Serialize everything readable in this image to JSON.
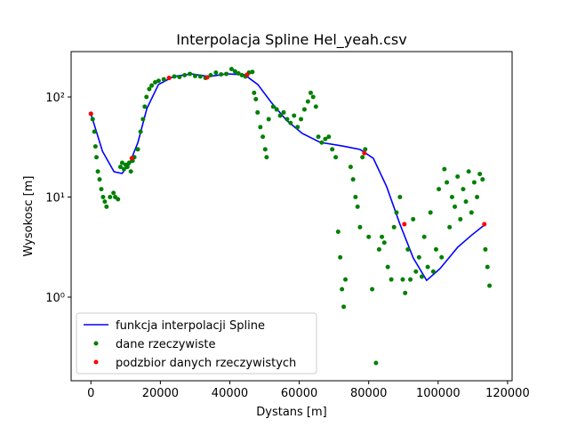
{
  "chart_data": {
    "type": "scatter",
    "title": "Interpolacja Spline Hel_yeah.csv",
    "x_label": "Dystans [m]",
    "y_label": "Wysokosc [m]",
    "yscale": "log",
    "legend": "lower left",
    "xlim": [
      -5700,
      121300
    ],
    "ylim": [
      0.146,
      284
    ],
    "xticks": [
      0,
      20000,
      40000,
      60000,
      80000,
      100000,
      120000
    ],
    "yticks": [
      {
        "value": 1,
        "label": "10⁰"
      },
      {
        "value": 10,
        "label": "10¹"
      },
      {
        "value": 100,
        "label": "10²"
      }
    ],
    "series": [
      {
        "name": "funkcja interpolacji Spline",
        "type": "line",
        "color": "#0000ff",
        "x": [
          0,
          3325,
          6650,
          8950,
          11000,
          13550,
          16110,
          19440,
          23790,
          28900,
          34000,
          39130,
          44250,
          48080,
          51920,
          56270,
          60870,
          66000,
          72380,
          77500,
          81330,
          85170,
          89000,
          92840,
          96680,
          100510,
          105630,
          109460,
          113300
        ],
        "values": [
          67.8,
          28.7,
          17.9,
          17.2,
          21.1,
          35.2,
          76.6,
          133,
          160,
          170,
          160,
          170,
          167,
          133,
          88.5,
          58.7,
          43.2,
          35.2,
          32.4,
          29.9,
          24.4,
          12.7,
          5.35,
          2.46,
          1.47,
          1.92,
          3.15,
          4.11,
          5.25
        ]
      },
      {
        "name": "dane rzeczywiste",
        "type": "scatter",
        "color": "#008000",
        "x": [
          0,
          500,
          1000,
          1300,
          1600,
          2000,
          2500,
          3000,
          3500,
          4000,
          4500,
          5500,
          6500,
          7000,
          7800,
          8500,
          9000,
          9500,
          10000,
          10500,
          11000,
          11500,
          12000,
          12500,
          13500,
          14300,
          15000,
          15500,
          16000,
          16800,
          17500,
          18500,
          19500,
          21000,
          22500,
          24000,
          25500,
          27000,
          28500,
          30000,
          31500,
          33000,
          34500,
          36000,
          37500,
          39000,
          40500,
          41500,
          42500,
          43500,
          44500,
          45500,
          46500,
          47000,
          47500,
          48000,
          48800,
          49500,
          50200,
          50600,
          51200,
          52500,
          53500,
          54500,
          55500,
          56500,
          57500,
          58500,
          59500,
          60500,
          61500,
          62500,
          63300,
          64000,
          64800,
          65500,
          66500,
          67500,
          68500,
          69500,
          70500,
          71200,
          71800,
          72300,
          72800,
          73300,
          74800,
          75500,
          76200,
          76800,
          77500,
          78200,
          79000,
          80000,
          81000,
          82100,
          83000,
          83800,
          84500,
          85500,
          86500,
          87300,
          88000,
          89000,
          89800,
          90500,
          91300,
          92000,
          92800,
          93600,
          94500,
          95300,
          96000,
          97000,
          97800,
          98600,
          99400,
          100200,
          101000,
          101800,
          102500,
          103300,
          104000,
          104800,
          105600,
          106400,
          107200,
          108000,
          108800,
          109600,
          110400,
          111200,
          112000,
          112800,
          113600,
          114200,
          114800
        ],
        "values": [
          68,
          60,
          45,
          32,
          25,
          18,
          15,
          12,
          10,
          9,
          8,
          10,
          11,
          10,
          9.5,
          20,
          22,
          19,
          21,
          20,
          22,
          18,
          23,
          25,
          30,
          45,
          60,
          80,
          100,
          120,
          130,
          140,
          145,
          150,
          155,
          160,
          158,
          165,
          170,
          162,
          160,
          155,
          165,
          175,
          168,
          170,
          190,
          180,
          172,
          165,
          160,
          175,
          178,
          110,
          95,
          70,
          50,
          40,
          30,
          25,
          60,
          80,
          75,
          65,
          70,
          60,
          55,
          65,
          50,
          60,
          75,
          90,
          110,
          100,
          80,
          40,
          35,
          38,
          40,
          30,
          25,
          4.5,
          2.5,
          1.2,
          0.8,
          1.5,
          20,
          15,
          10,
          8,
          5,
          25,
          30,
          4,
          1.2,
          0.22,
          3,
          4,
          3.5,
          2,
          1.5,
          5,
          7,
          10,
          1.5,
          1.1,
          3,
          1.5,
          6,
          1.8,
          2.5,
          1.6,
          4,
          2,
          7,
          1.8,
          3,
          12,
          2.5,
          19,
          14,
          5,
          10,
          8,
          16,
          6,
          12,
          9,
          18,
          7,
          14,
          10,
          17,
          15,
          3,
          2,
          1.3
        ]
      },
      {
        "name": "podzbior danych rzeczywistych",
        "type": "scatter",
        "color": "#ff0000",
        "x": [
          0,
          11760,
          22500,
          33500,
          45000,
          78760,
          90270,
          113300
        ],
        "values": [
          68,
          24.4,
          155,
          157,
          167,
          27.5,
          5.35,
          5.35
        ]
      }
    ]
  }
}
